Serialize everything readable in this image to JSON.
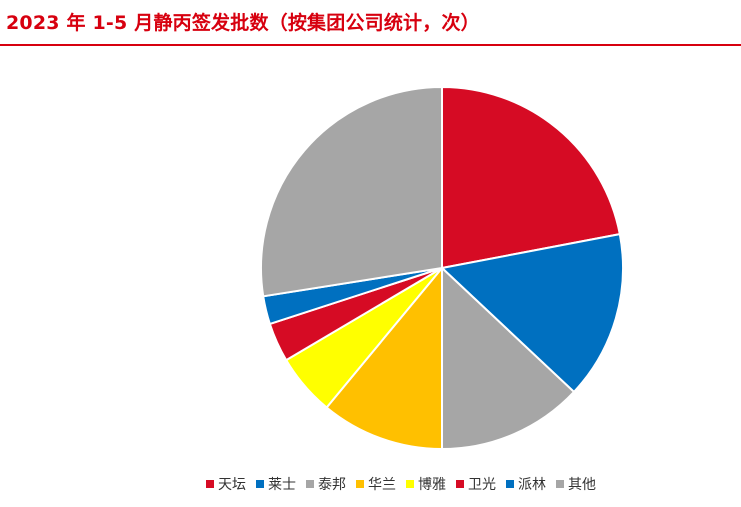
{
  "title": "2023 年 1-5 月静丙签发批数（按集团公司统计，次）",
  "chart_data": {
    "type": "pie",
    "title": "2023 年 1-5 月静丙签发批数（按集团公司统计，次）",
    "start_angle_deg": 0,
    "direction": "clockwise",
    "legend_position": "bottom",
    "slices": [
      {
        "label": "天坛",
        "value": 22.0,
        "color": "#d60b24"
      },
      {
        "label": "莱士",
        "value": 15.0,
        "color": "#0070c0"
      },
      {
        "label": "泰邦",
        "value": 13.0,
        "color": "#a6a6a6"
      },
      {
        "label": "华兰",
        "value": 11.0,
        "color": "#ffc000"
      },
      {
        "label": "博雅",
        "value": 5.5,
        "color": "#ffff00"
      },
      {
        "label": "卫光",
        "value": 3.5,
        "color": "#d60b24"
      },
      {
        "label": "派林",
        "value": 2.5,
        "color": "#0070c0"
      },
      {
        "label": "其他",
        "value": 27.5,
        "color": "#a6a6a6"
      }
    ]
  }
}
